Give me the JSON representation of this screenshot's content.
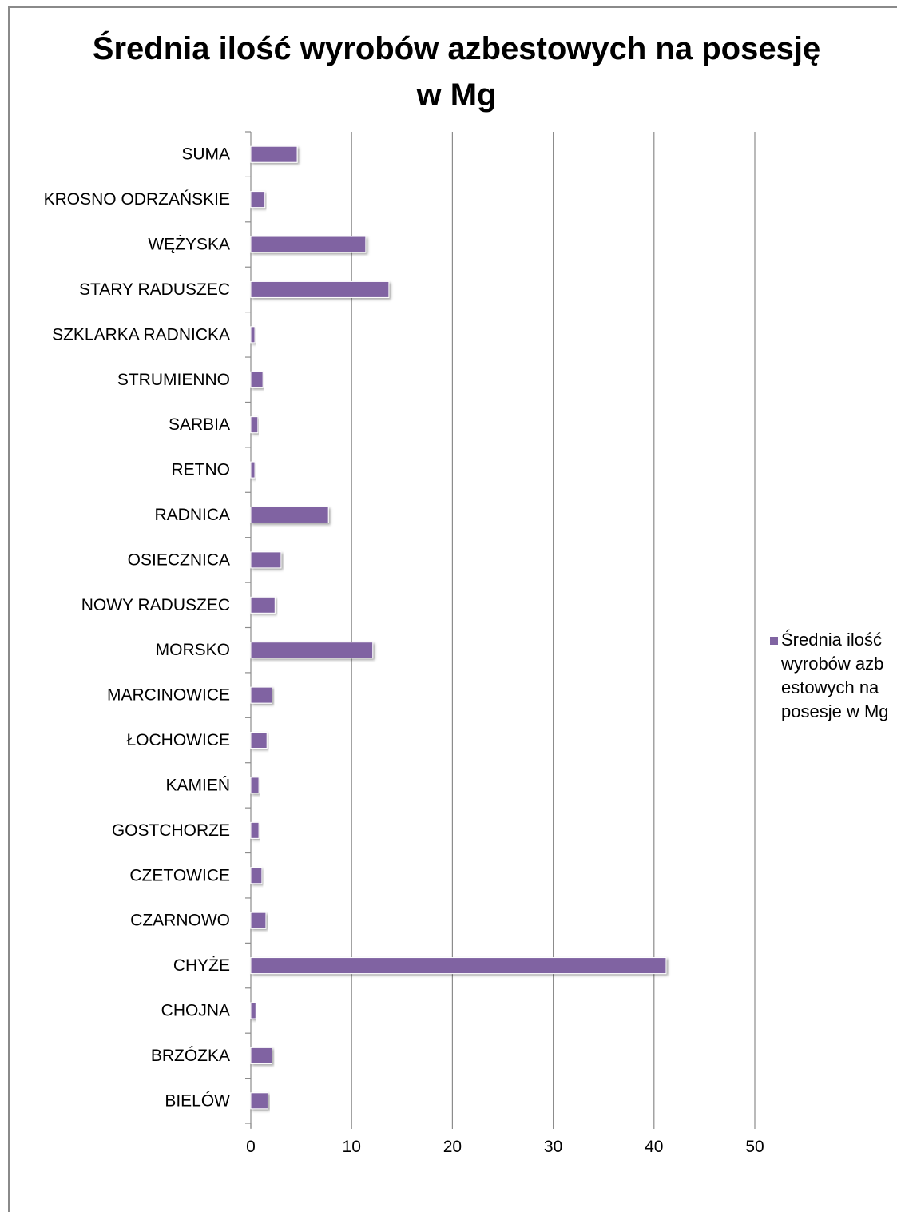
{
  "chart_data": {
    "type": "bar",
    "orientation": "horizontal",
    "title": "Średnia ilość wyrobów azbestowych na posesję w Mg",
    "categories": [
      "BIELÓW",
      "BRZÓZKA",
      "CHOJNA",
      "CHYŻE",
      "CZARNOWO",
      "CZETOWICE",
      "GOSTCHORZE",
      "KAMIEŃ",
      "ŁOCHOWICE",
      "MARCINOWICE",
      "MORSKO",
      "NOWY RADUSZEC",
      "OSIECZNICA",
      "RADNICA",
      "RETNO",
      "SARBIA",
      "STRUMIENNO",
      "SZKLARKA RADNICKA",
      "STARY RADUSZEC",
      "WĘŻYSKA",
      "KROSNO ODRZAŃSKIE",
      "SUMA"
    ],
    "series": [
      {
        "name": "Średnia ilość wyrobów azbestowych na posesje w Mg",
        "values": [
          1.7,
          2.1,
          0.5,
          41.2,
          1.5,
          1.1,
          0.8,
          0.8,
          1.6,
          2.1,
          12.1,
          2.4,
          3.0,
          7.7,
          0.4,
          0.7,
          1.2,
          0.4,
          13.7,
          11.4,
          1.4,
          4.6
        ]
      }
    ],
    "xlim": [
      0,
      50
    ],
    "xticks": [
      0,
      10,
      20,
      30,
      40,
      50
    ],
    "grid": "vertical",
    "legend_position": "right",
    "bar_color": "#8064a2"
  }
}
